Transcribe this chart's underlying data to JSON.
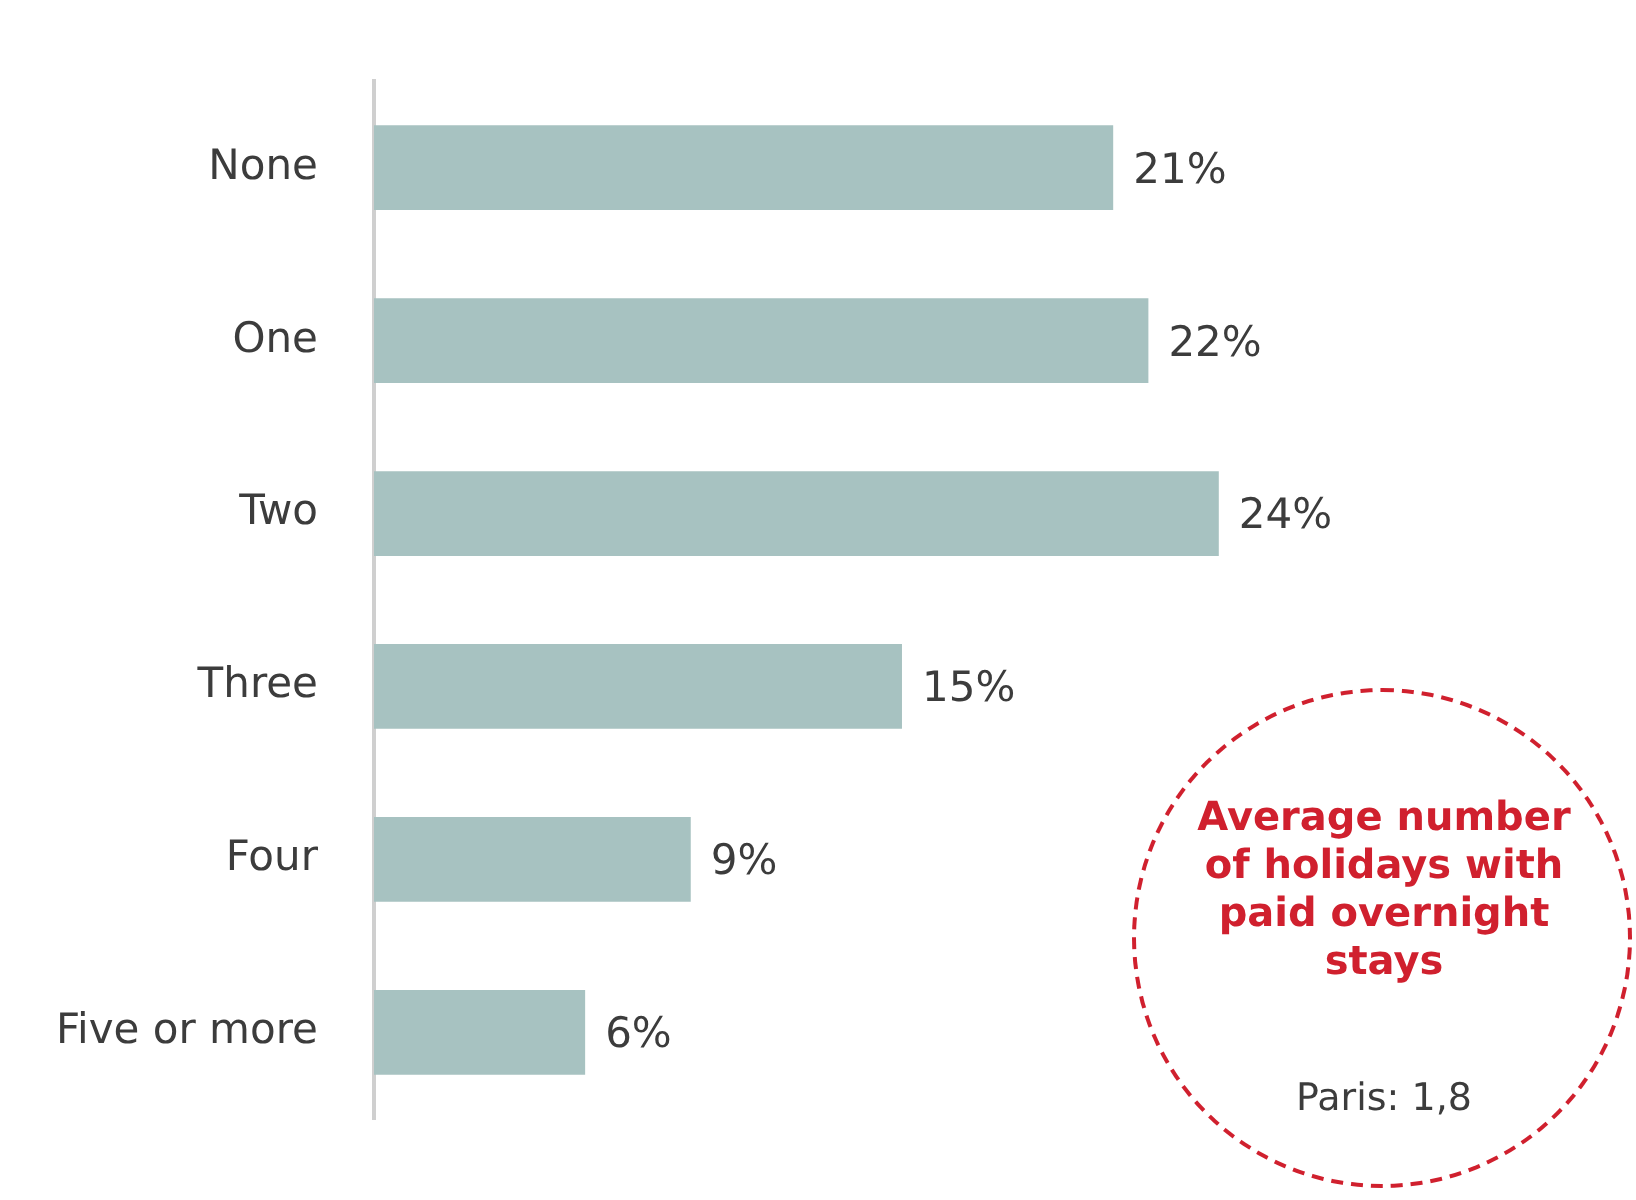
{
  "chart_data": {
    "type": "bar",
    "orientation": "horizontal",
    "categories": [
      "None",
      "One",
      "Two",
      "Three",
      "Four",
      "Five or more"
    ],
    "values": [
      21,
      22,
      24,
      15,
      9,
      6
    ],
    "value_labels": [
      "21%",
      "22%",
      "24%",
      "15%",
      "9%",
      "6%"
    ],
    "color": "#a7c2c1",
    "tick_labels": "y",
    "annotations": [
      "Average number of holidays with paid overnight stays",
      "Paris: 1,8"
    ]
  }
}
